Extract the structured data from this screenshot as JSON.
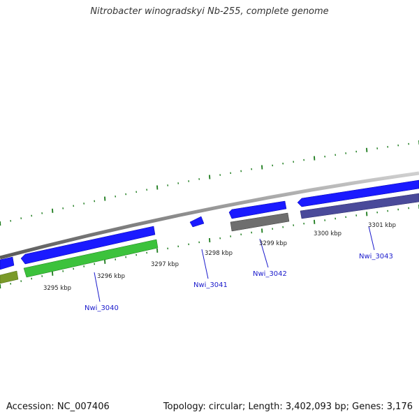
{
  "title": "Nitrobacter winogradskyi Nb-255, complete genome",
  "footer": {
    "accession": "Accession: NC_007406",
    "summary": "Topology: circular; Length: 3,402,093 bp; Genes: 3,176"
  },
  "colors": {
    "backbone": "#8c8c8c",
    "forward_cds": "#1a1aff",
    "reverse_cds_green": "#3cc23c",
    "reverse_cds_olive": "#7a9a2a",
    "reverse_cds_grey": "#6e6e6e",
    "reverse_cds_slate": "#4a4a9a",
    "ticks": "#1a7a1a",
    "label": "#1a1acc"
  },
  "scale": {
    "unit": "kbp",
    "labels": [
      {
        "value": 3295,
        "text": "3295 kbp"
      },
      {
        "value": 3296,
        "text": "3296 kbp"
      },
      {
        "value": 3297,
        "text": "3297 kbp"
      },
      {
        "value": 3298,
        "text": "3298 kbp"
      },
      {
        "value": 3299,
        "text": "3299 kbp"
      },
      {
        "value": 3300,
        "text": "3300 kbp"
      },
      {
        "value": 3301,
        "text": "3301 kbp"
      }
    ]
  },
  "genes": [
    {
      "name": "Nwi_3040"
    },
    {
      "name": "Nwi_3041"
    },
    {
      "name": "Nwi_3042"
    },
    {
      "name": "Nwi_3043"
    }
  ]
}
